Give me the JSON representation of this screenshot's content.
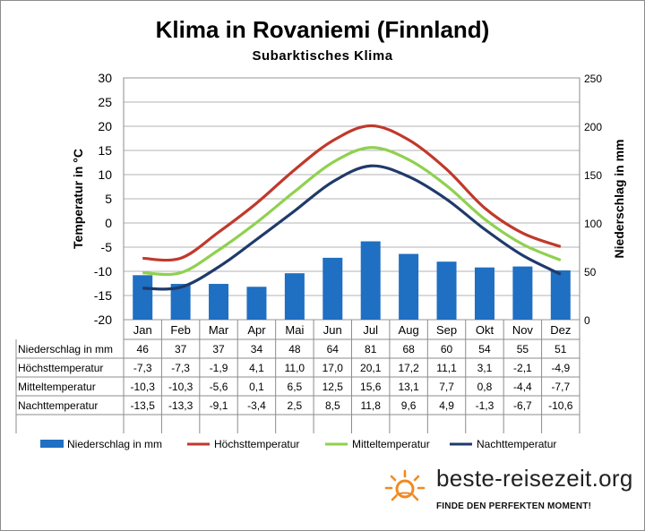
{
  "title": "Klima in Rovaniemi (Finnland)",
  "subtitle": "Subarktisches Klima",
  "logo": {
    "name": "beste-reisezeit.org",
    "tagline": "FINDE DEN PERFEKTEN MOMENT!"
  },
  "colors": {
    "precip": "#1f6fc2",
    "max": "#c0392b",
    "mean": "#8fd14f",
    "night": "#1f3a6b"
  },
  "chart_data": {
    "type": "bar+line",
    "categories": [
      "Jan",
      "Feb",
      "Mar",
      "Apr",
      "Mai",
      "Jun",
      "Jul",
      "Aug",
      "Sep",
      "Okt",
      "Nov",
      "Dez"
    ],
    "y_left": {
      "label": "Temperatur in °C",
      "range": [
        -20,
        30
      ],
      "ticks": [
        "30",
        "25",
        "20",
        "15",
        "10",
        "5",
        "0",
        "-5",
        "-10",
        "-15",
        "-20"
      ]
    },
    "y_right": {
      "label": "Niederschlag in mm",
      "range": [
        0,
        250
      ],
      "ticks": [
        "250",
        "200",
        "150",
        "100",
        "50",
        "0"
      ]
    },
    "grid": true,
    "legend_position": "bottom",
    "series": [
      {
        "name": "Niederschlag in mm",
        "kind": "bar",
        "axis": "right",
        "values": [
          46,
          37,
          37,
          34,
          48,
          64,
          81,
          68,
          60,
          54,
          55,
          51
        ],
        "labels": [
          "46",
          "37",
          "37",
          "34",
          "48",
          "64",
          "81",
          "68",
          "60",
          "54",
          "55",
          "51"
        ]
      },
      {
        "name": "Höchsttemperatur",
        "kind": "line",
        "axis": "left",
        "values": [
          -7.3,
          -7.3,
          -1.9,
          4.1,
          11.0,
          17.0,
          20.1,
          17.2,
          11.1,
          3.1,
          -2.1,
          -4.9
        ],
        "labels": [
          "-7,3",
          "-7,3",
          "-1,9",
          "4,1",
          "11,0",
          "17,0",
          "20,1",
          "17,2",
          "11,1",
          "3,1",
          "-2,1",
          "-4,9"
        ]
      },
      {
        "name": "Mitteltemperatur",
        "kind": "line",
        "axis": "left",
        "values": [
          -10.3,
          -10.3,
          -5.6,
          0.1,
          6.5,
          12.5,
          15.6,
          13.1,
          7.7,
          0.8,
          -4.4,
          -7.7
        ],
        "labels": [
          "-10,3",
          "-10,3",
          "-5,6",
          "0,1",
          "6,5",
          "12,5",
          "15,6",
          "13,1",
          "7,7",
          "0,8",
          "-4,4",
          "-7,7"
        ]
      },
      {
        "name": "Nachttemperatur",
        "kind": "line",
        "axis": "left",
        "values": [
          -13.5,
          -13.3,
          -9.1,
          -3.4,
          2.5,
          8.5,
          11.8,
          9.6,
          4.9,
          -1.3,
          -6.7,
          -10.6
        ],
        "labels": [
          "-13,5",
          "-13,3",
          "-9,1",
          "-3,4",
          "2,5",
          "8,5",
          "11,8",
          "9,6",
          "4,9",
          "-1,3",
          "-6,7",
          "-10,6"
        ]
      }
    ]
  }
}
